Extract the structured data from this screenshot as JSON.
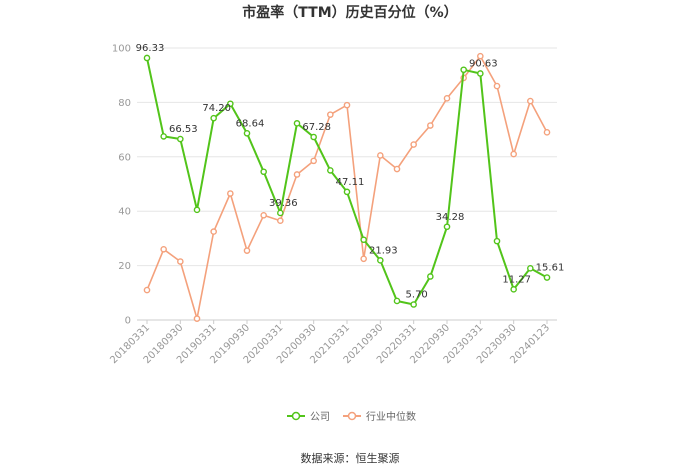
{
  "chart_data": {
    "type": "line",
    "title": "市盈率（TTM）历史百分位（%）",
    "source": "数据来源：恒生聚源",
    "ylim": [
      0,
      100
    ],
    "yticks": [
      "0",
      "20",
      "40",
      "60",
      "80",
      "100"
    ],
    "grid": true,
    "legend_position": "bottom",
    "xtick_labels": [
      "20180331",
      "20180930",
      "20190331",
      "20190930",
      "20200331",
      "20200930",
      "20210331",
      "20210930",
      "20220331",
      "20220930",
      "20230331",
      "20230930",
      "20240123"
    ],
    "x": [
      "20180331",
      "20180630",
      "20180930",
      "20181231",
      "20190331",
      "20190630",
      "20190930",
      "20191231",
      "20200331",
      "20200630",
      "20200930",
      "20201231",
      "20210331",
      "20210630",
      "20210930",
      "20211231",
      "20220331",
      "20220630",
      "20220930",
      "20221231",
      "20230331",
      "20230630",
      "20230930",
      "20231231",
      "20240123"
    ],
    "series": [
      {
        "name": "公司",
        "color": "#52c41a",
        "values": [
          96.33,
          67.5,
          66.53,
          40.5,
          74.2,
          79.5,
          68.64,
          54.5,
          39.36,
          72.3,
          67.28,
          55.0,
          47.11,
          29.5,
          21.93,
          7.0,
          5.7,
          16.0,
          34.28,
          92.0,
          90.63,
          29.0,
          11.27,
          19.0,
          15.61
        ],
        "labels": {
          "0": "96.33",
          "2": "66.53",
          "4": "74.20",
          "6": "68.64",
          "8": "39.36",
          "10": "67.28",
          "12": "47.11",
          "14": "21.93",
          "16": "5.70",
          "18": "34.28",
          "20": "90.63",
          "22": "11.27",
          "24": "15.61"
        }
      },
      {
        "name": "行业中位数",
        "color": "#f4a17c",
        "values": [
          11.0,
          26.0,
          21.5,
          0.5,
          32.5,
          46.5,
          25.5,
          38.5,
          36.5,
          53.5,
          58.5,
          75.5,
          79.0,
          22.5,
          60.5,
          55.5,
          64.5,
          71.5,
          81.5,
          89.0,
          97.0,
          86.0,
          61.0,
          80.5,
          69.0
        ]
      }
    ]
  }
}
